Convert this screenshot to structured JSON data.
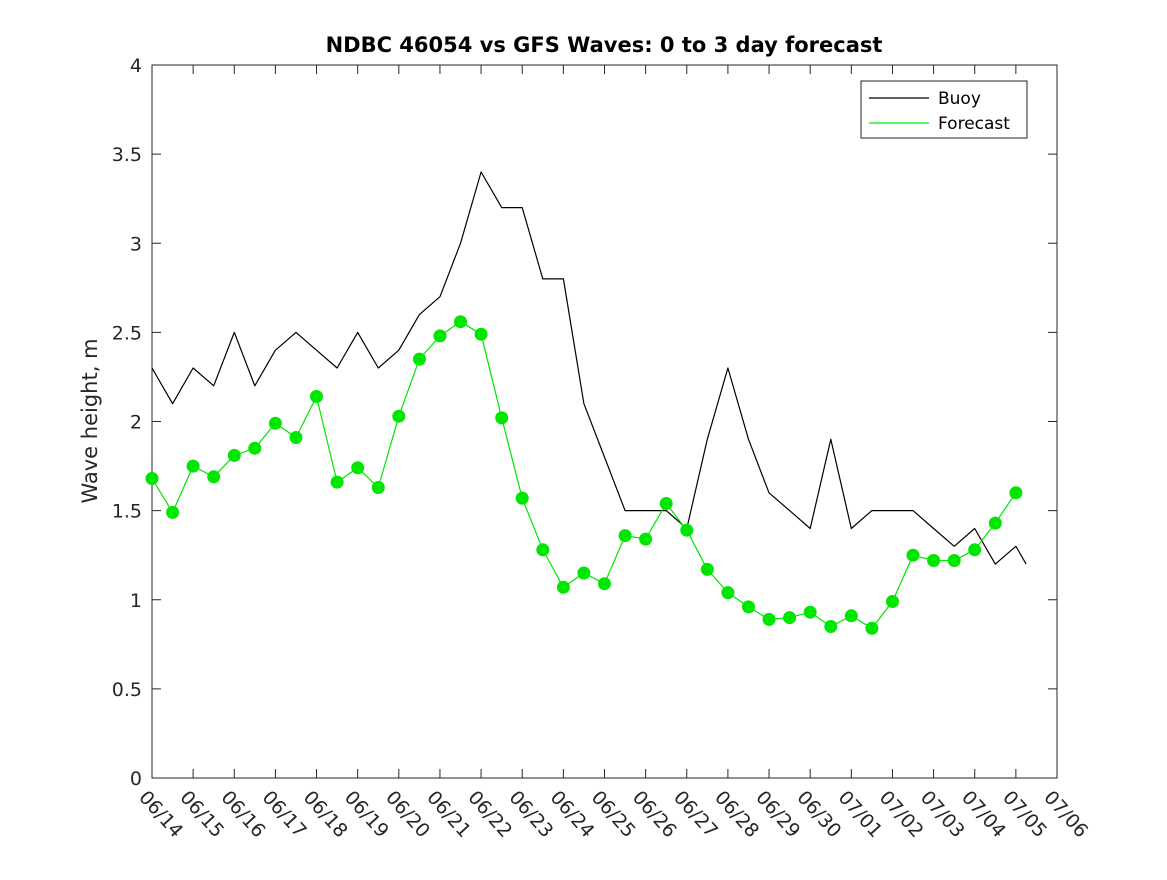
{
  "chart_data": {
    "type": "line",
    "title": "NDBC 46054 vs GFS Waves: 0 to 3 day forecast",
    "xlabel": "",
    "ylabel": "Wave height, m",
    "ylim": [
      0,
      4
    ],
    "yticks": [
      0,
      0.5,
      1,
      1.5,
      2,
      2.5,
      3,
      3.5,
      4
    ],
    "ytick_labels": [
      "0",
      "0.5",
      "1",
      "1.5",
      "2",
      "2.5",
      "3",
      "3.5",
      "4"
    ],
    "xlim": [
      "06/14",
      "07/06"
    ],
    "xtick_labels": [
      "06/14",
      "06/15",
      "06/16",
      "06/17",
      "06/18",
      "06/19",
      "06/20",
      "06/21",
      "06/22",
      "06/23",
      "06/24",
      "06/25",
      "06/26",
      "06/27",
      "06/28",
      "06/29",
      "06/30",
      "07/01",
      "07/02",
      "07/03",
      "07/04",
      "07/05",
      "07/06"
    ],
    "grid": false,
    "legend_position": "top-right",
    "colors": {
      "buoy": "#000000",
      "forecast": "#00e600"
    },
    "series": [
      {
        "name": "Buoy",
        "x": [
          "06/14 00:00",
          "06/14 12:00",
          "06/15 00:00",
          "06/15 12:00",
          "06/16 00:00",
          "06/16 12:00",
          "06/17 00:00",
          "06/17 12:00",
          "06/18 00:00",
          "06/18 12:00",
          "06/19 00:00",
          "06/19 12:00",
          "06/20 00:00",
          "06/20 12:00",
          "06/21 00:00",
          "06/21 12:00",
          "06/22 00:00",
          "06/22 12:00",
          "06/23 00:00",
          "06/23 12:00",
          "06/24 00:00",
          "06/24 12:00",
          "06/25 00:00",
          "06/25 12:00",
          "06/26 00:00",
          "06/26 12:00",
          "06/27 00:00",
          "06/27 12:00",
          "06/28 00:00",
          "06/28 12:00",
          "06/29 00:00",
          "06/29 12:00",
          "06/30 00:00",
          "06/30 12:00",
          "07/01 00:00",
          "07/01 12:00",
          "07/02 00:00",
          "07/02 12:00",
          "07/03 00:00",
          "07/03 12:00",
          "07/04 00:00",
          "07/04 12:00",
          "07/05 00:00",
          "07/05 06:00"
        ],
        "values": [
          2.3,
          2.1,
          2.3,
          2.2,
          2.5,
          2.2,
          2.4,
          2.5,
          2.4,
          2.3,
          2.5,
          2.3,
          2.4,
          2.6,
          2.7,
          3.0,
          3.4,
          3.2,
          3.2,
          2.8,
          2.8,
          2.1,
          1.8,
          1.5,
          1.5,
          1.5,
          1.4,
          1.9,
          2.3,
          1.9,
          1.6,
          1.5,
          1.4,
          1.9,
          1.4,
          1.5,
          1.5,
          1.5,
          1.4,
          1.3,
          1.4,
          1.2,
          1.3,
          1.2
        ]
      },
      {
        "name": "Forecast",
        "x": [
          "06/14 00:00",
          "06/14 12:00",
          "06/15 00:00",
          "06/15 12:00",
          "06/16 00:00",
          "06/16 12:00",
          "06/17 00:00",
          "06/17 12:00",
          "06/18 00:00",
          "06/18 12:00",
          "06/19 00:00",
          "06/19 12:00",
          "06/20 00:00",
          "06/20 12:00",
          "06/21 00:00",
          "06/21 12:00",
          "06/22 00:00",
          "06/22 12:00",
          "06/23 00:00",
          "06/23 12:00",
          "06/24 00:00",
          "06/24 12:00",
          "06/25 00:00",
          "06/25 12:00",
          "06/26 00:00",
          "06/26 12:00",
          "06/27 00:00",
          "06/27 12:00",
          "06/28 00:00",
          "06/28 12:00",
          "06/29 00:00",
          "06/29 12:00",
          "06/30 00:00",
          "06/30 12:00",
          "07/01 00:00",
          "07/01 12:00",
          "07/02 00:00",
          "07/02 12:00",
          "07/03 00:00",
          "07/03 12:00",
          "07/04 00:00",
          "07/04 12:00",
          "07/05 00:00"
        ],
        "values": [
          1.68,
          1.49,
          1.75,
          1.69,
          1.81,
          1.85,
          1.99,
          1.91,
          2.14,
          1.66,
          1.74,
          1.63,
          2.03,
          2.35,
          2.48,
          2.56,
          2.49,
          2.02,
          1.57,
          1.28,
          1.07,
          1.15,
          1.09,
          1.36,
          1.34,
          1.54,
          1.39,
          1.17,
          1.04,
          0.96,
          0.89,
          0.9,
          0.93,
          0.85,
          0.91,
          0.84,
          0.99,
          1.25,
          1.22,
          1.22,
          1.28,
          1.43,
          1.6
        ]
      }
    ]
  }
}
